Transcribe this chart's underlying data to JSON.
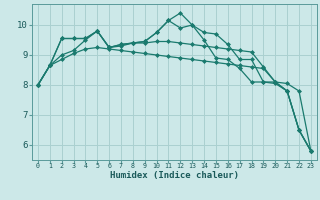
{
  "title": "",
  "xlabel": "Humidex (Indice chaleur)",
  "ylabel": "",
  "xlim": [
    -0.5,
    23.5
  ],
  "ylim": [
    5.5,
    10.7
  ],
  "yticks": [
    6,
    7,
    8,
    9,
    10
  ],
  "xticks": [
    0,
    1,
    2,
    3,
    4,
    5,
    6,
    7,
    8,
    9,
    10,
    11,
    12,
    13,
    14,
    15,
    16,
    17,
    18,
    19,
    20,
    21,
    22,
    23
  ],
  "bg_color": "#cce8e8",
  "grid_color": "#aad0d0",
  "line_color": "#1a7a6e",
  "series": [
    [
      8.0,
      8.65,
      9.55,
      9.55,
      9.55,
      9.8,
      9.25,
      9.3,
      9.4,
      9.45,
      9.75,
      10.15,
      10.4,
      10.0,
      9.5,
      8.9,
      8.85,
      8.55,
      8.1,
      8.1,
      8.05,
      7.8,
      6.5,
      5.8
    ],
    [
      8.0,
      8.65,
      9.55,
      9.55,
      9.55,
      9.8,
      9.25,
      9.35,
      9.4,
      9.45,
      9.75,
      10.15,
      9.9,
      10.0,
      9.75,
      9.7,
      9.35,
      8.85,
      8.85,
      8.1,
      8.1,
      8.05,
      7.8,
      5.8
    ],
    [
      8.0,
      8.65,
      9.0,
      9.15,
      9.5,
      9.8,
      9.25,
      9.35,
      9.4,
      9.4,
      9.45,
      9.45,
      9.4,
      9.35,
      9.3,
      9.25,
      9.2,
      9.15,
      9.1,
      8.6,
      8.1,
      7.8,
      6.5,
      5.8
    ],
    [
      8.0,
      8.65,
      8.85,
      9.05,
      9.2,
      9.25,
      9.2,
      9.15,
      9.1,
      9.05,
      9.0,
      8.95,
      8.9,
      8.85,
      8.8,
      8.75,
      8.7,
      8.65,
      8.6,
      8.55,
      8.1,
      7.8,
      6.5,
      5.8
    ]
  ]
}
